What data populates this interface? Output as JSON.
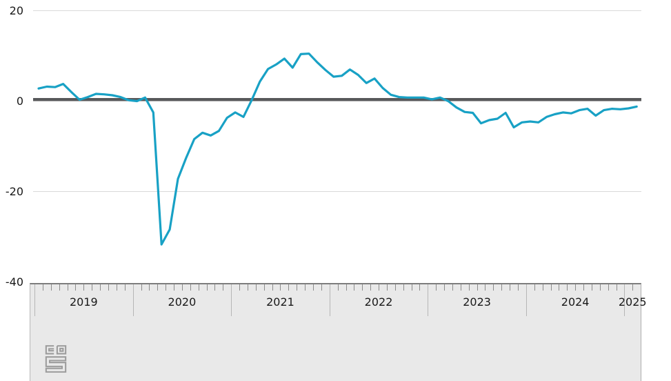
{
  "chart_data": {
    "type": "line",
    "title": "",
    "y_axis": {
      "ticks": [
        20,
        0,
        -20,
        -40
      ],
      "range": [
        -40,
        20
      ],
      "gridlines": [
        20,
        -20
      ],
      "zero_line_emphasized": true
    },
    "x_axis": {
      "year_labels": [
        "2019",
        "2020",
        "2021",
        "2022",
        "2023",
        "2024",
        "2025"
      ],
      "minor_ticks": "monthly"
    },
    "series": [
      {
        "name": "monthly-values",
        "color": "#18a1c5",
        "start": "2019-01",
        "frequency": "monthly",
        "values": [
          2.8,
          3.2,
          3.1,
          3.8,
          2.0,
          0.3,
          0.9,
          1.6,
          1.5,
          1.3,
          0.9,
          0.2,
          0.0,
          0.8,
          -2.5,
          -31.7,
          -28.4,
          -17.2,
          -12.6,
          -8.4,
          -7.0,
          -7.6,
          -6.6,
          -3.7,
          -2.5,
          -3.5,
          0.2,
          4.3,
          7.1,
          8.1,
          9.4,
          7.4,
          10.4,
          10.5,
          8.6,
          6.9,
          5.4,
          5.6,
          7.0,
          5.8,
          4.0,
          5.0,
          2.9,
          1.4,
          0.9,
          0.8,
          0.8,
          0.8,
          0.4,
          0.8,
          0.0,
          -1.4,
          -2.4,
          -2.6,
          -4.9,
          -4.2,
          -3.9,
          -2.6,
          -5.8,
          -4.7,
          -4.5,
          -4.7,
          -3.5,
          -2.9,
          -2.5,
          -2.7,
          -2.0,
          -1.7,
          -3.2,
          -2.0,
          -1.7,
          -1.8,
          -1.6,
          -1.2
        ]
      }
    ],
    "legend": "none"
  },
  "footer": {
    "logo_icon": "cbs-logo"
  },
  "colors": {
    "line": "#18a1c5",
    "zero_line": "#58595b",
    "gridline": "#d9d9d9",
    "axis_band_bg": "#e9e9e9",
    "axis_band_top_border": "#7d7d7d",
    "minor_tick": "#8b8b8b",
    "year_separator": "#b6b6b6",
    "label_text": "#191919",
    "logo": "#9c9c9c"
  }
}
